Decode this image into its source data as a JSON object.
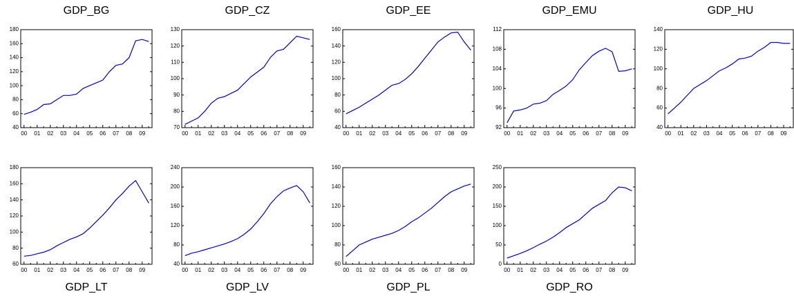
{
  "chart_data": [
    {
      "type": "line",
      "title": "GDP_BG",
      "color": "#0000cc",
      "categories": [
        "00",
        null,
        "01",
        null,
        "02",
        null,
        "03",
        null,
        "04",
        null,
        "05",
        null,
        "06",
        null,
        "07",
        null,
        "08",
        null,
        "09",
        null
      ],
      "values": [
        59,
        62,
        66,
        73,
        74,
        80,
        86,
        86,
        88,
        96,
        100,
        104,
        108,
        120,
        129,
        131,
        140,
        164,
        166,
        163
      ],
      "ylim": [
        40,
        180
      ],
      "yticks": [
        40,
        60,
        80,
        100,
        120,
        140,
        160,
        180
      ]
    },
    {
      "type": "line",
      "title": "GDP_CZ",
      "color": "#0000cc",
      "categories": [
        "00",
        null,
        "01",
        null,
        "02",
        null,
        "03",
        null,
        "04",
        null,
        "05",
        null,
        "06",
        null,
        "07",
        null,
        "08",
        null,
        "09",
        null
      ],
      "values": [
        72,
        74,
        76,
        80,
        85,
        88,
        89,
        91,
        93,
        97,
        101,
        104,
        107,
        113,
        117,
        118,
        122,
        126,
        125,
        124
      ],
      "ylim": [
        70,
        130
      ],
      "yticks": [
        70,
        80,
        90,
        100,
        110,
        120,
        130
      ]
    },
    {
      "type": "line",
      "title": "GDP_EE",
      "color": "#0000cc",
      "categories": [
        "00",
        null,
        "01",
        null,
        "02",
        null,
        "03",
        null,
        "04",
        null,
        "05",
        null,
        "06",
        null,
        "07",
        null,
        "08",
        null,
        "09",
        null
      ],
      "values": [
        57,
        61,
        65,
        70,
        75,
        80,
        86,
        92,
        94,
        99,
        106,
        115,
        125,
        135,
        145,
        151,
        156,
        157,
        145,
        135
      ],
      "ylim": [
        40,
        160
      ],
      "yticks": [
        40,
        60,
        80,
        100,
        120,
        140,
        160
      ]
    },
    {
      "type": "line",
      "title": "GDP_EMU",
      "color": "#0000cc",
      "categories": [
        "00",
        null,
        "01",
        null,
        "02",
        null,
        "03",
        null,
        "04",
        null,
        "05",
        null,
        "06",
        null,
        "07",
        null,
        "08",
        null,
        "09",
        null
      ],
      "values": [
        93,
        95.4,
        95.6,
        96,
        96.8,
        97,
        97.5,
        98.8,
        99.6,
        100.5,
        101.8,
        103.8,
        105.3,
        106.7,
        107.6,
        108.2,
        107.5,
        103.5,
        103.6,
        104
      ],
      "ylim": [
        92,
        112
      ],
      "yticks": [
        92,
        96,
        100,
        104,
        108,
        112
      ]
    },
    {
      "type": "line",
      "title": "GDP_HU",
      "color": "#0000cc",
      "categories": [
        "00",
        null,
        "01",
        null,
        "02",
        null,
        "03",
        null,
        "04",
        null,
        "05",
        null,
        "06",
        null,
        "07",
        null,
        "08",
        null,
        "09",
        null
      ],
      "values": [
        54,
        60,
        66,
        73,
        80,
        84,
        88,
        93,
        98,
        101,
        105,
        110,
        111,
        113,
        118,
        122,
        127,
        127,
        126,
        126
      ],
      "ylim": [
        40,
        140
      ],
      "yticks": [
        40,
        60,
        80,
        100,
        120,
        140
      ]
    },
    {
      "type": "line",
      "title": "GDP_LT",
      "color": "#0000cc",
      "categories": [
        "00",
        null,
        "01",
        null,
        "02",
        null,
        "03",
        null,
        "04",
        null,
        "05",
        null,
        "06",
        null,
        "07",
        null,
        "08",
        null,
        "09",
        null
      ],
      "values": [
        70,
        71,
        73,
        75,
        78,
        83,
        87,
        91,
        94,
        98,
        105,
        113,
        121,
        130,
        140,
        148,
        157,
        164,
        150,
        136
      ],
      "ylim": [
        60,
        180
      ],
      "yticks": [
        60,
        80,
        100,
        120,
        140,
        160,
        180
      ]
    },
    {
      "type": "line",
      "title": "GDP_LV",
      "color": "#0000cc",
      "categories": [
        "00",
        null,
        "01",
        null,
        "02",
        null,
        "03",
        null,
        "04",
        null,
        "05",
        null,
        "06",
        null,
        "07",
        null,
        "08",
        null,
        "09",
        null
      ],
      "values": [
        58,
        63,
        66,
        70,
        74,
        78,
        82,
        87,
        93,
        102,
        113,
        128,
        145,
        165,
        180,
        192,
        198,
        203,
        190,
        167
      ],
      "ylim": [
        40,
        240
      ],
      "yticks": [
        40,
        80,
        120,
        160,
        200,
        240
      ]
    },
    {
      "type": "line",
      "title": "GDP_PL",
      "color": "#0000cc",
      "categories": [
        "00",
        null,
        "01",
        null,
        "02",
        null,
        "03",
        null,
        "04",
        null,
        "05",
        null,
        "06",
        null,
        "07",
        null,
        "08",
        null,
        "09",
        null
      ],
      "values": [
        68,
        74,
        80,
        83,
        86,
        88,
        90,
        92,
        95,
        99,
        104,
        108,
        113,
        118,
        124,
        130,
        135,
        138,
        141,
        143
      ],
      "ylim": [
        60,
        160
      ],
      "yticks": [
        60,
        80,
        100,
        120,
        140,
        160
      ]
    },
    {
      "type": "line",
      "title": "GDP_RO",
      "color": "#0000cc",
      "categories": [
        "00",
        null,
        "01",
        null,
        "02",
        null,
        "03",
        null,
        "04",
        null,
        "05",
        null,
        "06",
        null,
        "07",
        null,
        "08",
        null,
        "09",
        null
      ],
      "values": [
        16,
        22,
        28,
        35,
        43,
        52,
        60,
        70,
        82,
        95,
        105,
        115,
        130,
        145,
        155,
        165,
        185,
        200,
        198,
        190
      ],
      "ylim": [
        0,
        250
      ],
      "yticks": [
        0,
        50,
        100,
        150,
        200,
        250
      ]
    }
  ]
}
